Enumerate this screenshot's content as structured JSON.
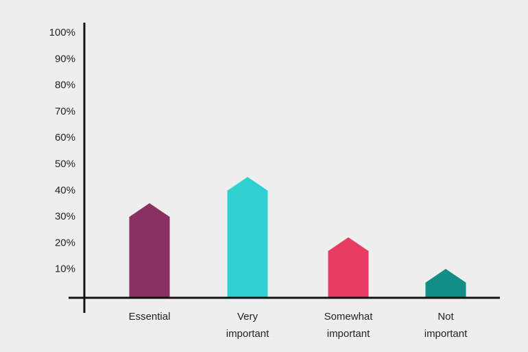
{
  "chart_data": {
    "type": "bar",
    "title": "",
    "xlabel": "",
    "ylabel": "",
    "ylim": [
      0,
      100
    ],
    "y_ticks": [
      "10%",
      "20%",
      "30%",
      "40%",
      "50%",
      "60%",
      "70%",
      "80%",
      "90%",
      "100%"
    ],
    "categories": [
      [
        "Essential"
      ],
      [
        "Very",
        "important"
      ],
      [
        "Somewhat",
        "important"
      ],
      [
        "Not",
        "important"
      ]
    ],
    "values": [
      36,
      46,
      23,
      11
    ],
    "colors": [
      "#8b3063",
      "#2ed1cf",
      "#e63b62",
      "#128e88"
    ],
    "bar_shape": "house",
    "grid": false,
    "legend": "none"
  }
}
